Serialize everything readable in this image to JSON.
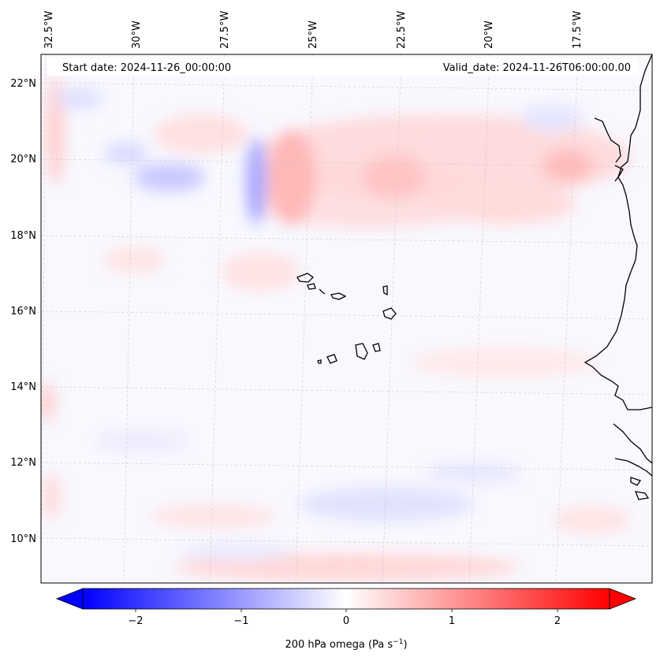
{
  "header": {
    "start_date": "Start date: 2024-11-26_00:00:00",
    "valid_date": "Valid_date: 2024-11-26T06:00:00.00"
  },
  "map": {
    "longitude_labels": [
      "32.5°W",
      "30°W",
      "27.5°W",
      "25°W",
      "22.5°W",
      "20°W",
      "17.5°W"
    ],
    "latitude_labels": [
      "22°N",
      "20°N",
      "18°N",
      "16°N",
      "14°N",
      "12°N",
      "10°N"
    ],
    "gridlines": true,
    "field_colors": {
      "negative": "#0000ff",
      "neutral": "#ffffff",
      "positive": "#ff0000"
    }
  },
  "colorbar": {
    "tick_labels": [
      "−2",
      "−1",
      "0",
      "1",
      "2"
    ],
    "label_prefix": "200 hPa omega (Pa s",
    "label_exp": "−1",
    "label_suffix": ")",
    "range": [
      -2.5,
      2.5
    ],
    "extend": "both"
  }
}
